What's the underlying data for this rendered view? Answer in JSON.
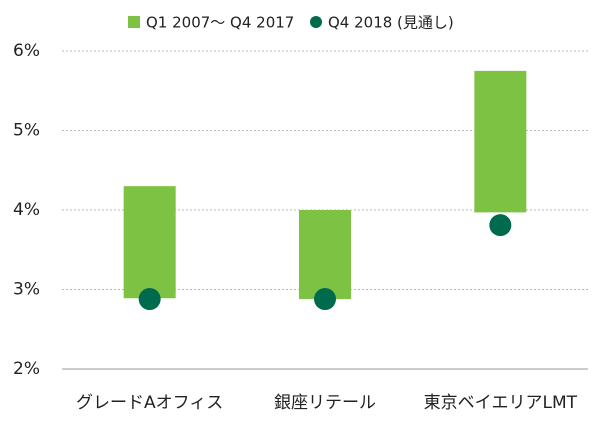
{
  "chart_data": {
    "type": "range-bar",
    "categories": [
      "グレードAオフィス",
      "銀座リテール",
      "東京ベイエリアLMT"
    ],
    "series": [
      {
        "name": "Q1 2007〜 Q4 2017",
        "type": "range",
        "color": "#7dc242",
        "low": [
          2.89,
          2.88,
          3.97
        ],
        "high": [
          4.3,
          4.0,
          5.75
        ]
      },
      {
        "name": "Q4 2018 (見通し)",
        "type": "scatter",
        "color": "#006a4e",
        "values": [
          2.88,
          2.88,
          3.81
        ]
      }
    ],
    "ylim": [
      2,
      6
    ],
    "yticks": [
      {
        "value": 2,
        "label": "2%"
      },
      {
        "value": 3,
        "label": "3%"
      },
      {
        "value": 4,
        "label": "4%"
      },
      {
        "value": 5,
        "label": "5%"
      },
      {
        "value": 6,
        "label": "6%"
      }
    ],
    "grid": true
  }
}
